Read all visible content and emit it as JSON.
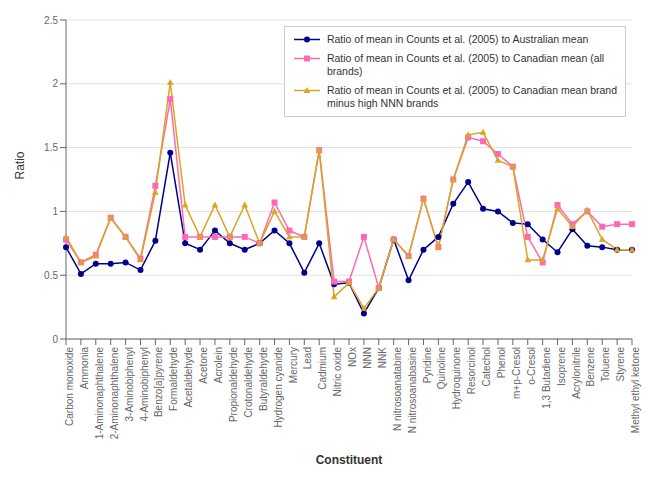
{
  "chart_data": {
    "type": "line",
    "categories": [
      "Carbon monoxide",
      "Ammonia",
      "1-Aminonaphthalene",
      "2-Aminonaphthalene",
      "3-Aminobiphenyl",
      "4-Aminobiphenyl",
      "Benzo[a]pyrene",
      "Formaldehyde",
      "Acetaldehyde",
      "Acetone",
      "Acrolein",
      "Propionaldehyde",
      "Crotonaldehyde",
      "Butyraldehyde",
      "Hydrogen cyanide",
      "Mercury",
      "Lead",
      "Cadmium",
      "Nitric oxide",
      "NOx",
      "NNN",
      "NNK",
      "N nitrosoanatabine",
      "N nitrosoanabasine",
      "Pyridine",
      "Quinoline",
      "Hydroquinone",
      "Resorcinol",
      "Catechol",
      "Phenol",
      "m+p-Cresol",
      "o-Cresol",
      "1,3 Butadiene",
      "Isoprene",
      "Acrylonitrile",
      "Benzene",
      "Toluene",
      "Styrene",
      "Methyl ethyl ketone"
    ],
    "series": [
      {
        "name": "Ratio of mean in Counts et al. (2005) to Australian mean",
        "color": "#00008B",
        "marker": "circle",
        "values": [
          0.72,
          0.51,
          0.59,
          0.59,
          0.6,
          0.54,
          0.77,
          1.46,
          0.75,
          0.7,
          0.85,
          0.75,
          0.7,
          0.75,
          0.85,
          0.75,
          0.52,
          0.75,
          0.43,
          0.44,
          0.2,
          0.4,
          0.78,
          0.46,
          0.7,
          0.8,
          1.06,
          1.23,
          1.02,
          1.0,
          0.91,
          0.9,
          0.78,
          0.68,
          0.86,
          0.73,
          0.72,
          0.7,
          0.7
        ]
      },
      {
        "name": "Ratio of mean in Counts et al. (2005) to Canadian mean (all\nbrands)",
        "color": "#FF69B4",
        "marker": "square",
        "values": [
          0.78,
          0.6,
          0.66,
          0.95,
          0.8,
          0.63,
          1.2,
          1.88,
          0.8,
          0.8,
          0.8,
          0.8,
          0.8,
          0.75,
          1.07,
          0.85,
          0.8,
          1.48,
          0.45,
          0.45,
          0.8,
          0.4,
          0.78,
          0.65,
          1.1,
          0.72,
          1.25,
          1.58,
          1.55,
          1.45,
          1.35,
          0.8,
          0.6,
          1.05,
          0.9,
          1.0,
          0.88,
          0.9,
          0.9
        ]
      },
      {
        "name": "Ratio of mean in Counts et al. (2005) to Canadian mean brand\nminus high NNN brands",
        "color": "#DAA520",
        "marker": "triangle",
        "values": [
          0.8,
          0.6,
          0.65,
          0.95,
          0.8,
          0.62,
          1.15,
          2.01,
          1.05,
          0.8,
          1.05,
          0.8,
          1.05,
          0.75,
          1.0,
          0.8,
          0.8,
          1.48,
          0.33,
          0.44,
          0.24,
          0.4,
          0.78,
          0.65,
          1.1,
          0.72,
          1.25,
          1.6,
          1.62,
          1.4,
          1.35,
          0.62,
          0.62,
          1.02,
          0.88,
          1.01,
          0.78,
          0.7,
          0.7
        ]
      }
    ],
    "xlabel": "Constituent",
    "ylabel": "Ratio",
    "ylim": [
      0,
      2.5
    ],
    "yticks": [
      0,
      0.5,
      1.0,
      1.5,
      2.0,
      2.5
    ],
    "grid": true,
    "legend": "upper right"
  }
}
